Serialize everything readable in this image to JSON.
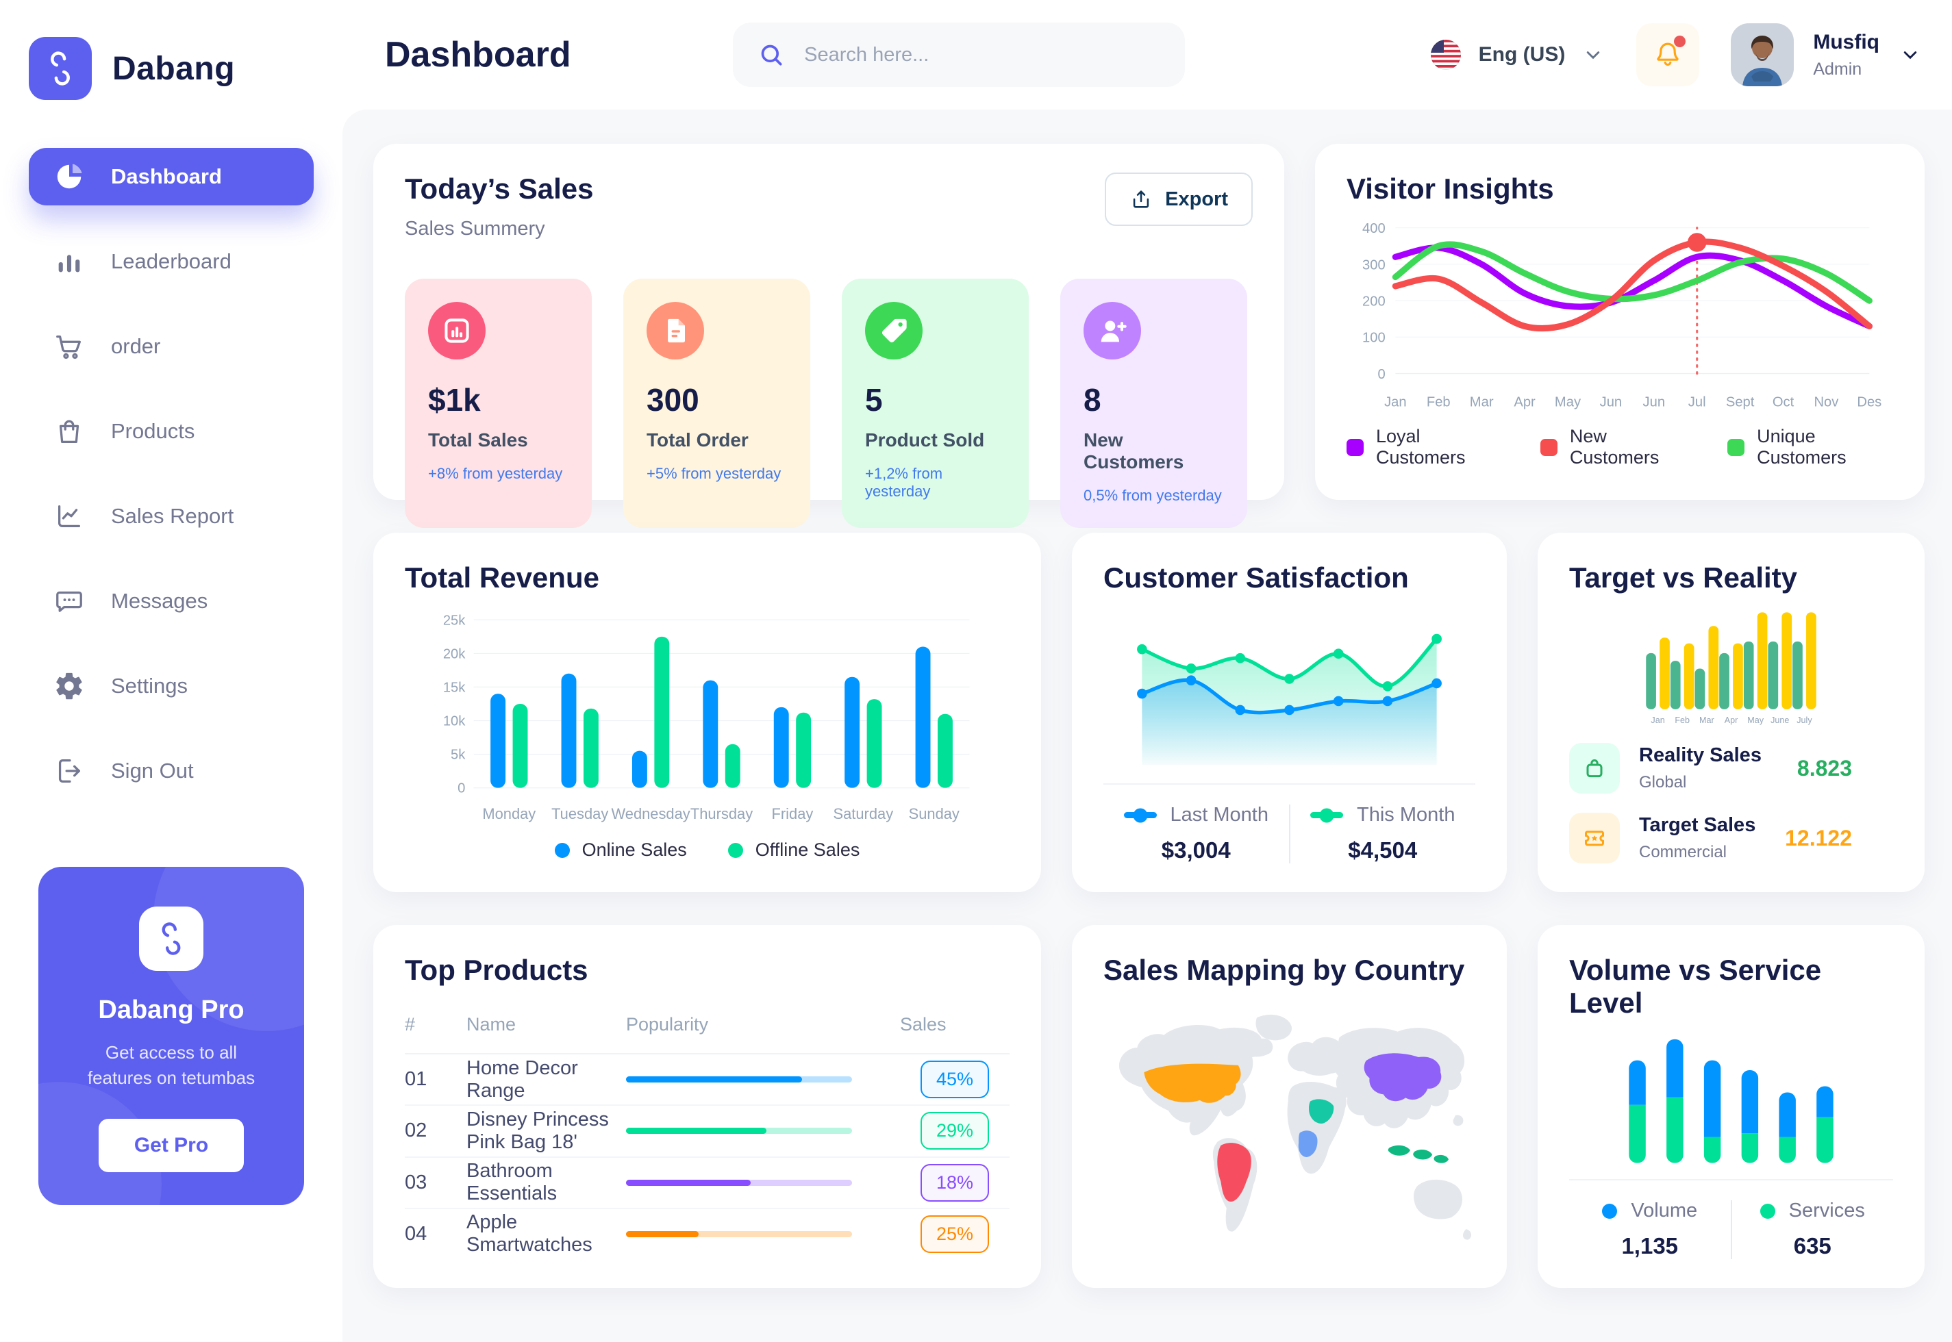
{
  "brand": {
    "name": "Dabang"
  },
  "sidebar": {
    "items": [
      {
        "label": "Dashboard",
        "icon": "dashboard-icon",
        "active": true
      },
      {
        "label": "Leaderboard",
        "icon": "leaderboard-icon",
        "active": false
      },
      {
        "label": "order",
        "icon": "order-icon",
        "active": false
      },
      {
        "label": "Products",
        "icon": "products-icon",
        "active": false
      },
      {
        "label": "Sales Report",
        "icon": "sales-report-icon",
        "active": false
      },
      {
        "label": "Messages",
        "icon": "messages-icon",
        "active": false
      },
      {
        "label": "Settings",
        "icon": "settings-icon",
        "active": false
      },
      {
        "label": "Sign Out",
        "icon": "signout-icon",
        "active": false
      }
    ],
    "pro_card": {
      "title": "Dabang Pro",
      "subtitle": "Get access to all features on tetumbas",
      "button_label": "Get Pro"
    }
  },
  "header": {
    "page_title": "Dashboard",
    "search_placeholder": "Search here...",
    "language": "Eng (US)",
    "notification_icon": "bell-icon",
    "user": {
      "name": "Musfiq",
      "role": "Admin"
    }
  },
  "todays_sales": {
    "title": "Today’s Sales",
    "subtitle": "Sales Summery",
    "export_label": "Export",
    "cards": [
      {
        "value": "$1k",
        "label": "Total Sales",
        "delta": "+8% from yesterday",
        "bg": "#FFE2E5",
        "icon_bg": "#FA5A7D",
        "icon": "bar-chart-doc-icon"
      },
      {
        "value": "300",
        "label": "Total Order",
        "delta": "+5% from yesterday",
        "bg": "#FFF4DE",
        "icon_bg": "#FF947A",
        "icon": "receipt-icon"
      },
      {
        "value": "5",
        "label": "Product Sold",
        "delta": "+1,2% from yesterday",
        "bg": "#DCFCE7",
        "icon_bg": "#3CD856",
        "icon": "tag-icon"
      },
      {
        "value": "8",
        "label": "New Customers",
        "delta": "0,5% from yesterday",
        "bg": "#F3E8FF",
        "icon_bg": "#BF83FF",
        "icon": "user-plus-icon"
      }
    ]
  },
  "chart_data": [
    {
      "id": "visitor_insights",
      "type": "line",
      "title": "Visitor Insights",
      "x": [
        "Jan",
        "Feb",
        "Mar",
        "Apr",
        "May",
        "Jun",
        "Jun",
        "Jul",
        "Sept",
        "Oct",
        "Nov",
        "Des"
      ],
      "ylim": [
        0,
        400
      ],
      "yticks": [
        0,
        100,
        200,
        300,
        400
      ],
      "grid": false,
      "legend_position": "bottom",
      "series": [
        {
          "name": "Loyal Customers",
          "color": "#A700FF",
          "values": [
            320,
            345,
            300,
            220,
            185,
            195,
            255,
            320,
            310,
            255,
            185,
            130
          ]
        },
        {
          "name": "New Customers",
          "color": "#F64E4E",
          "values": [
            240,
            260,
            195,
            130,
            135,
            200,
            310,
            360,
            345,
            295,
            225,
            130
          ]
        },
        {
          "name": "Unique Customers",
          "color": "#3CD856",
          "values": [
            265,
            350,
            335,
            275,
            225,
            205,
            215,
            255,
            305,
            315,
            275,
            200
          ]
        }
      ],
      "highlight": {
        "x_index": 7,
        "value": 360,
        "color": "#F64E4E"
      }
    },
    {
      "id": "total_revenue",
      "type": "bar",
      "title": "Total Revenue",
      "categories": [
        "Monday",
        "Tuesday",
        "Wednesday",
        "Thursday",
        "Friday",
        "Saturday",
        "Sunday"
      ],
      "ylim": [
        0,
        25000
      ],
      "yticks": [
        0,
        5000,
        10000,
        15000,
        20000,
        25000
      ],
      "ytick_labels": [
        "0",
        "5k",
        "10k",
        "15k",
        "20k",
        "25k"
      ],
      "grid": true,
      "legend_position": "bottom",
      "series": [
        {
          "name": "Online Sales",
          "color": "#0095FF",
          "values": [
            14000,
            17000,
            5500,
            16000,
            12000,
            16500,
            21000
          ]
        },
        {
          "name": "Offline Sales",
          "color": "#00E096",
          "values": [
            12500,
            11800,
            22500,
            6500,
            11200,
            13200,
            11000
          ]
        }
      ]
    },
    {
      "id": "customer_satisfaction",
      "type": "area",
      "title": "Customer Satisfaction",
      "ylim": [
        0,
        100
      ],
      "legend_position": "bottom",
      "series": [
        {
          "name": "Last Month",
          "total": "$3,004",
          "color": "#0095FF",
          "values": [
            48,
            57,
            37,
            37,
            43,
            43,
            55
          ]
        },
        {
          "name": "This Month",
          "total": "$4,504",
          "color": "#00E096",
          "values": [
            78,
            65,
            72,
            58,
            75,
            53,
            85
          ]
        }
      ]
    },
    {
      "id": "target_vs_reality",
      "type": "bar",
      "title": "Target vs Reality",
      "categories": [
        "Jan",
        "Feb",
        "Mar",
        "Apr",
        "May",
        "June",
        "July"
      ],
      "ylim": [
        0,
        100
      ],
      "grid": false,
      "series": [
        {
          "name": "Reality Sales",
          "subtitle": "Global",
          "total": "8.823",
          "color": "#4AB58E",
          "value_color": "#27AE60",
          "icon_bg": "#E2FFF3",
          "icon": "bag-icon",
          "values": [
            58,
            50,
            42,
            58,
            70,
            70,
            70
          ]
        },
        {
          "name": "Target Sales",
          "subtitle": "Commercial",
          "total": "12.122",
          "color": "#FFCF00",
          "value_color": "#FFA412",
          "icon_bg": "#FFF4DE",
          "icon": "ticket-icon",
          "values": [
            74,
            68,
            86,
            68,
            100,
            100,
            100
          ]
        }
      ]
    },
    {
      "id": "top_products",
      "type": "table",
      "title": "Top Products",
      "columns": [
        "#",
        "Name",
        "Popularity",
        "Sales"
      ],
      "rows": [
        {
          "rank": "01",
          "name": "Home Decor Range",
          "popularity": 78,
          "sales": "45%",
          "color": "#0095FF"
        },
        {
          "rank": "02",
          "name": "Disney Princess Pink Bag 18'",
          "popularity": 62,
          "sales": "29%",
          "color": "#00E096"
        },
        {
          "rank": "03",
          "name": "Bathroom Essentials",
          "popularity": 55,
          "sales": "18%",
          "color": "#884DFF"
        },
        {
          "rank": "04",
          "name": "Apple Smartwatches",
          "popularity": 32,
          "sales": "25%",
          "color": "#FF8900"
        }
      ]
    },
    {
      "id": "sales_mapping",
      "type": "map",
      "title": "Sales Mapping by Country",
      "land_color": "#E4E7EB",
      "countries": [
        {
          "name": "United States",
          "color": "#FFA412"
        },
        {
          "name": "Brazil",
          "color": "#F64E60"
        },
        {
          "name": "DR Congo",
          "color": "#6D9FF5"
        },
        {
          "name": "Saudi Arabia",
          "color": "#16C8A3"
        },
        {
          "name": "China",
          "color": "#9061F9"
        },
        {
          "name": "Indonesia",
          "color": "#10B981"
        }
      ]
    },
    {
      "id": "volume_service",
      "type": "bar",
      "subtype": "stacked",
      "title": "Volume vs Service Level",
      "ylim": [
        0,
        100
      ],
      "legend_position": "bottom",
      "series": [
        {
          "name": "Volume",
          "total": "1,135",
          "color": "#0095FF",
          "values": [
            36,
            47,
            62,
            51,
            36,
            25
          ]
        },
        {
          "name": "Services",
          "total": "635",
          "color": "#00E096",
          "values": [
            47,
            53,
            21,
            24,
            21,
            37
          ]
        }
      ]
    }
  ]
}
